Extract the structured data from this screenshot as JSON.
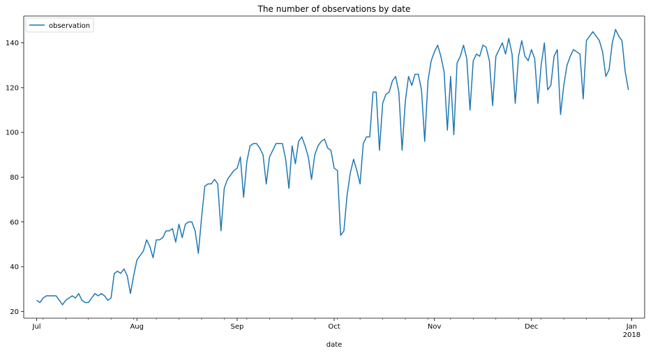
{
  "chart_data": {
    "type": "line",
    "title": "The number of observations by date",
    "xlabel": "date",
    "ylabel": "",
    "xlim": [
      "2017-06-27",
      "2018-01-05"
    ],
    "ylim": [
      17,
      152
    ],
    "yticks": [
      20,
      40,
      60,
      80,
      100,
      120,
      140
    ],
    "xticks": [
      {
        "date": "2017-07-01",
        "label": "Jul",
        "sublabel": ""
      },
      {
        "date": "2017-08-01",
        "label": "Aug",
        "sublabel": ""
      },
      {
        "date": "2017-09-01",
        "label": "Sep",
        "sublabel": ""
      },
      {
        "date": "2017-10-01",
        "label": "Oct",
        "sublabel": ""
      },
      {
        "date": "2017-11-01",
        "label": "Nov",
        "sublabel": ""
      },
      {
        "date": "2017-12-01",
        "label": "Dec",
        "sublabel": ""
      },
      {
        "date": "2018-01-01",
        "label": "Jan",
        "sublabel": "2018"
      }
    ],
    "grid": false,
    "legend_position": "top-left",
    "series": [
      {
        "name": "observation",
        "color": "#1f77b4",
        "start_date": "2017-07-01",
        "values": [
          25,
          24,
          26,
          27,
          27,
          27,
          27,
          25,
          23,
          25,
          26,
          27,
          26,
          28,
          25,
          24,
          24,
          26,
          28,
          27,
          28,
          27,
          25,
          26,
          37,
          38,
          37,
          39,
          36,
          28,
          36,
          43,
          45,
          47,
          52,
          49,
          44,
          52,
          52,
          53,
          56,
          56,
          57,
          51,
          59,
          53,
          59,
          60,
          60,
          56,
          46,
          62,
          76,
          77,
          77,
          79,
          77,
          56,
          75,
          79,
          81,
          83,
          84,
          89,
          71,
          87,
          94,
          95,
          95,
          93,
          90,
          77,
          89,
          92,
          95,
          95,
          95,
          88,
          75,
          94,
          86,
          96,
          98,
          94,
          89,
          79,
          90,
          94,
          96,
          97,
          93,
          92,
          84,
          83,
          54,
          56,
          72,
          82,
          88,
          83,
          77,
          95,
          98,
          98,
          118,
          118,
          92,
          113,
          117,
          118,
          123,
          125,
          118,
          92,
          114,
          125,
          121,
          126,
          126,
          119,
          96,
          123,
          132,
          136,
          139,
          134,
          127,
          101,
          125,
          99,
          131,
          134,
          139,
          133,
          110,
          132,
          135,
          134,
          139,
          138,
          132,
          112,
          134,
          137,
          140,
          135,
          142,
          135,
          113,
          134,
          141,
          134,
          132,
          137,
          133,
          113,
          130,
          140,
          119,
          121,
          134,
          137,
          108,
          121,
          130,
          134,
          137,
          136,
          135,
          115,
          141,
          143,
          145,
          143,
          141,
          136,
          125,
          128,
          140,
          146,
          143,
          141,
          127,
          119
        ]
      }
    ]
  }
}
